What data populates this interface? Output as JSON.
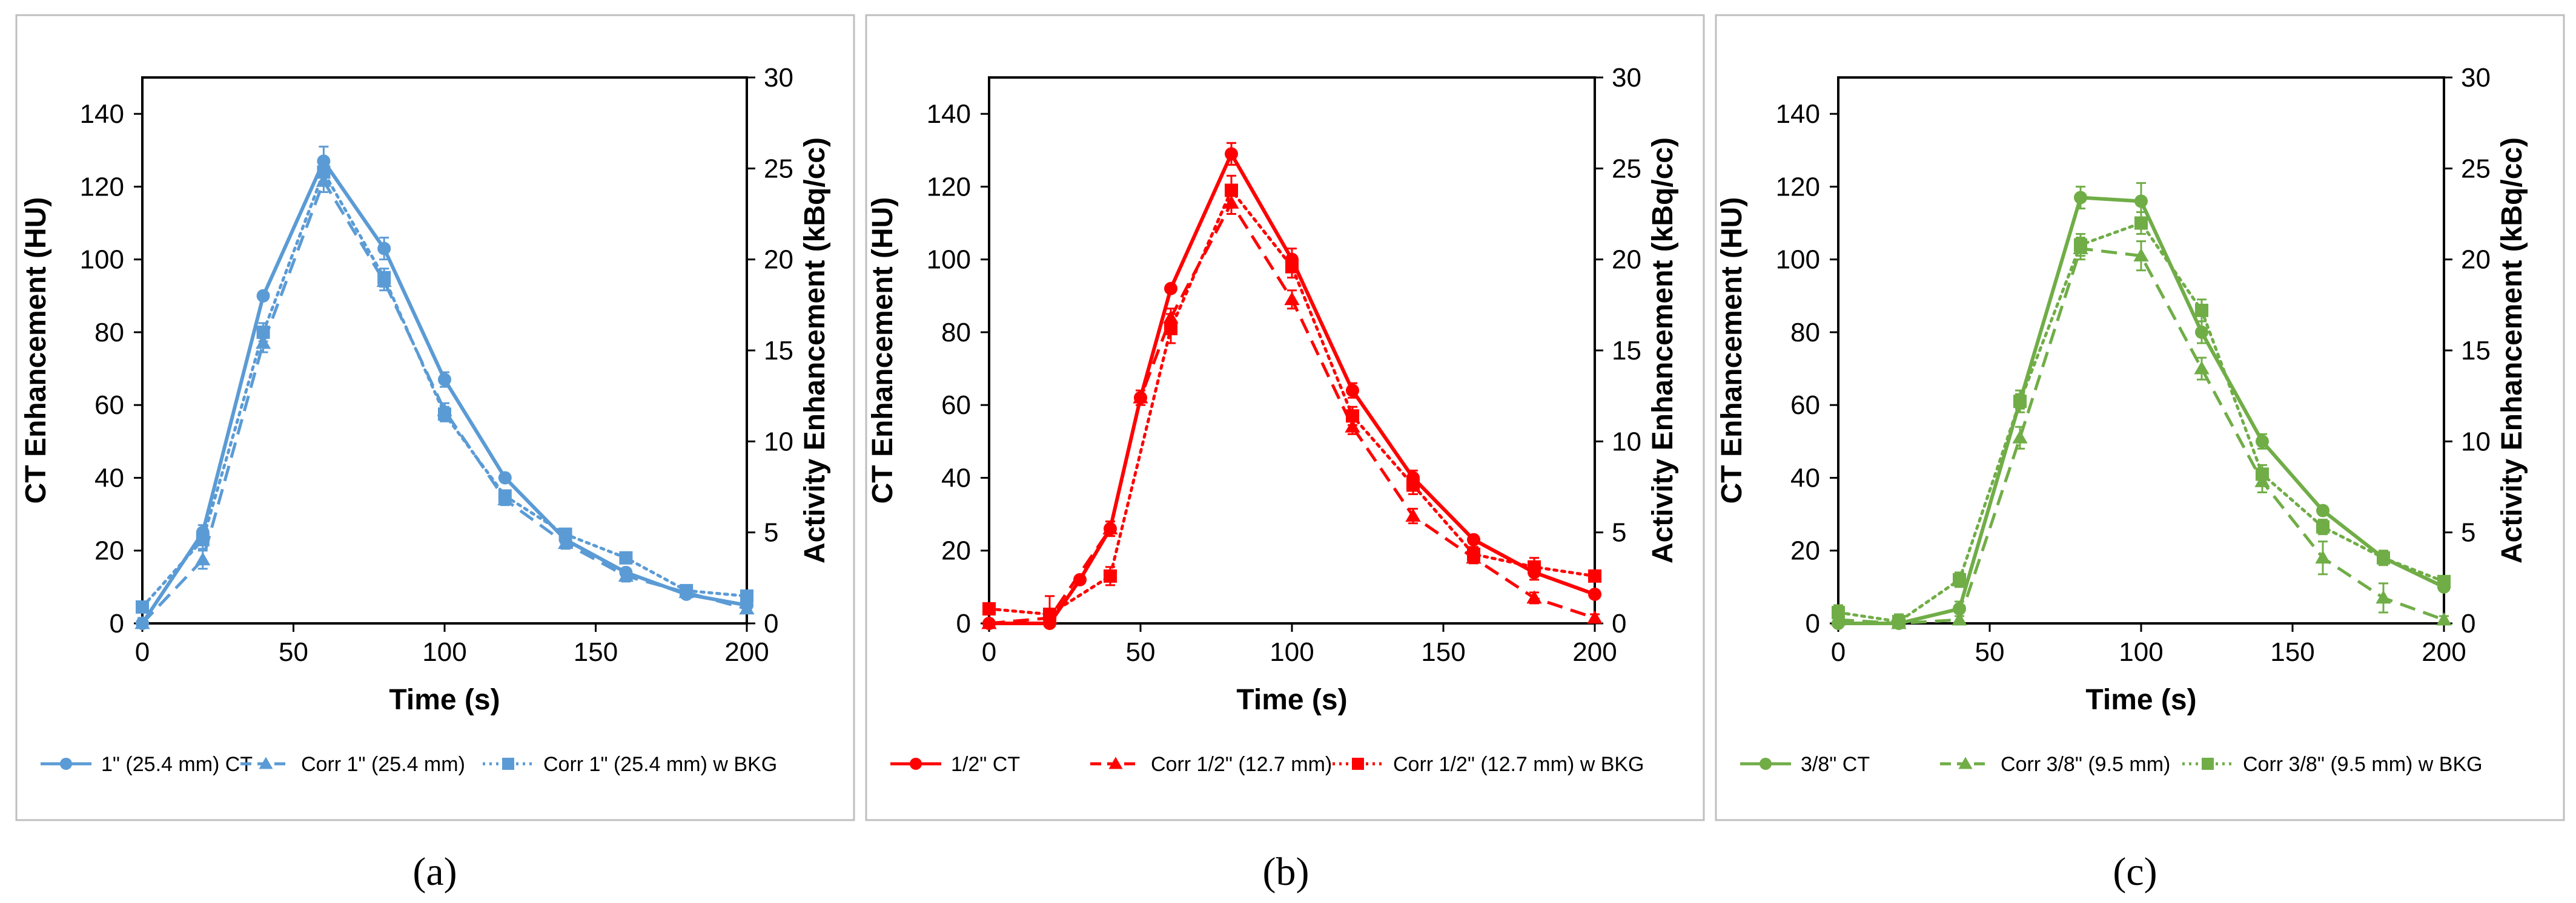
{
  "chart_data": [
    {
      "type": "line",
      "panel_label": "(a)",
      "title": "",
      "xlabel": "Time (s)",
      "ylabel": "CT Enhancement (HU)",
      "y2label": "Activity Enhancement (kBq/cc)",
      "xlim": [
        0,
        200
      ],
      "ylim": [
        0,
        150
      ],
      "y2lim": [
        0,
        30
      ],
      "xticks": [
        "0",
        "50",
        "100",
        "150",
        "200"
      ],
      "yticks": [
        "0",
        "20",
        "40",
        "60",
        "80",
        "100",
        "120",
        "140"
      ],
      "y2ticks": [
        "0",
        "5",
        "10",
        "15",
        "20",
        "25",
        "30"
      ],
      "grid": false,
      "legend_position": "bottom",
      "color": "#5B9BD5",
      "series": [
        {
          "name": "1\" (25.4 mm) CT",
          "axis": "left",
          "style": "solid",
          "marker": "circle",
          "x": [
            0,
            20,
            40,
            60,
            80,
            100,
            120,
            140,
            160,
            180,
            200
          ],
          "y": [
            0,
            25,
            90,
            127,
            103,
            67,
            40,
            23,
            14,
            8,
            5
          ],
          "err": [
            1,
            2,
            1,
            4,
            3,
            2,
            1,
            1,
            1,
            1,
            1
          ]
        },
        {
          "name": "Corr 1\" (25.4 mm)",
          "axis": "right",
          "style": "dash",
          "marker": "triangle",
          "x": [
            0,
            20,
            40,
            60,
            80,
            100,
            120,
            140,
            160,
            180,
            200
          ],
          "y": [
            0,
            3.5,
            15.4,
            24.3,
            18.8,
            11.7,
            6.8,
            4.4,
            2.6,
            1.7,
            0.8
          ],
          "err": [
            0.3,
            0.5,
            0.5,
            0.6,
            0.5,
            0.4,
            0.3,
            0.3,
            0.3,
            0.2,
            0.2
          ]
        },
        {
          "name": "Corr 1\" (25.4 mm) w BKG",
          "axis": "right",
          "style": "dot",
          "marker": "square",
          "x": [
            0,
            20,
            40,
            60,
            80,
            100,
            120,
            140,
            160,
            180,
            200
          ],
          "y": [
            0.9,
            4.6,
            16.0,
            24.8,
            19.0,
            11.5,
            7.0,
            4.9,
            3.6,
            1.8,
            1.5
          ],
          "err": [
            0.3,
            0.5,
            0.5,
            0.6,
            0.5,
            0.4,
            0.3,
            0.3,
            0.3,
            0.2,
            0.2
          ]
        }
      ]
    },
    {
      "type": "line",
      "panel_label": "(b)",
      "title": "",
      "xlabel": "Time (s)",
      "ylabel": "CT Enhancement (HU)",
      "y2label": "Activity Enhancement (kBq/cc)",
      "xlim": [
        0,
        200
      ],
      "ylim": [
        0,
        150
      ],
      "y2lim": [
        0,
        30
      ],
      "xticks": [
        "0",
        "50",
        "100",
        "150",
        "200"
      ],
      "yticks": [
        "0",
        "20",
        "40",
        "60",
        "80",
        "100",
        "120",
        "140"
      ],
      "y2ticks": [
        "0",
        "5",
        "10",
        "15",
        "20",
        "25",
        "30"
      ],
      "grid": false,
      "legend_position": "bottom",
      "color": "#FF0000",
      "series": [
        {
          "name": "1/2\" CT",
          "axis": "left",
          "style": "solid",
          "marker": "circle",
          "x": [
            0,
            20,
            30,
            40,
            50,
            60,
            80,
            100,
            120,
            140,
            160,
            180,
            200
          ],
          "y": [
            0,
            0,
            12,
            26,
            62,
            92,
            129,
            100,
            64,
            40,
            23,
            14,
            8
          ],
          "err": [
            1,
            1,
            1,
            2,
            1,
            1,
            3,
            3,
            2,
            2,
            1,
            2,
            1
          ]
        },
        {
          "name": "Corr 1/2\" (12.7 mm)",
          "axis": "right",
          "style": "dash",
          "marker": "triangle",
          "x": [
            0,
            20,
            40,
            50,
            60,
            80,
            100,
            120,
            140,
            160,
            180,
            200
          ],
          "y": [
            0,
            0.3,
            5.2,
            12.4,
            16.8,
            23.1,
            17.8,
            10.8,
            5.9,
            3.6,
            1.4,
            0.3
          ],
          "err": [
            0.2,
            0.3,
            0.4,
            0.4,
            0.5,
            0.6,
            0.5,
            0.4,
            0.4,
            0.3,
            0.3,
            0.2
          ]
        },
        {
          "name": "Corr 1/2\" (12.7 mm) w BKG",
          "axis": "right",
          "style": "dot",
          "marker": "square",
          "x": [
            0,
            20,
            40,
            60,
            80,
            100,
            120,
            140,
            160,
            180,
            200
          ],
          "y": [
            0.8,
            0.5,
            2.6,
            16.2,
            23.8,
            19.6,
            11.4,
            7.6,
            3.8,
            3.1,
            2.6
          ],
          "err": [
            0.2,
            1.0,
            0.5,
            0.8,
            0.8,
            0.6,
            0.5,
            0.5,
            0.4,
            0.5,
            0.3
          ]
        }
      ]
    },
    {
      "type": "line",
      "panel_label": "(c)",
      "title": "",
      "xlabel": "Time (s)",
      "ylabel": "CT Enhancement (HU)",
      "y2label": "Activity Enhancement (kBq/cc)",
      "xlim": [
        0,
        200
      ],
      "ylim": [
        0,
        150
      ],
      "y2lim": [
        0,
        30
      ],
      "xticks": [
        "0",
        "50",
        "100",
        "150",
        "200"
      ],
      "yticks": [
        "0",
        "20",
        "40",
        "60",
        "80",
        "100",
        "120",
        "140"
      ],
      "y2ticks": [
        "0",
        "5",
        "10",
        "15",
        "20",
        "25",
        "30"
      ],
      "grid": false,
      "legend_position": "bottom",
      "color": "#70AD47",
      "series": [
        {
          "name": "3/8\" CT",
          "axis": "left",
          "style": "solid",
          "marker": "circle",
          "x": [
            0,
            20,
            40,
            60,
            80,
            100,
            120,
            140,
            160,
            180,
            200
          ],
          "y": [
            0,
            0,
            4,
            61,
            117,
            116,
            80,
            50,
            31,
            18,
            10
          ],
          "err": [
            4,
            2,
            2,
            2,
            3,
            5,
            3,
            2,
            1,
            1,
            1
          ]
        },
        {
          "name": "Corr 3/8\" (9.5 mm)",
          "axis": "right",
          "style": "dash",
          "marker": "triangle",
          "x": [
            0,
            20,
            40,
            60,
            80,
            100,
            120,
            140,
            160,
            180,
            200
          ],
          "y": [
            0.2,
            0,
            0.2,
            10.2,
            20.6,
            20.2,
            14.0,
            7.8,
            3.6,
            1.4,
            0.2
          ],
          "err": [
            0.4,
            0.3,
            0.4,
            0.6,
            0.6,
            0.8,
            0.6,
            0.6,
            0.9,
            0.8,
            0.2
          ]
        },
        {
          "name": "Corr 3/8\" (9.5 mm) w BKG",
          "axis": "right",
          "style": "dot",
          "marker": "square",
          "x": [
            0,
            20,
            40,
            60,
            80,
            100,
            120,
            140,
            160,
            180,
            200
          ],
          "y": [
            0.6,
            0.1,
            2.4,
            12.2,
            20.8,
            22.0,
            17.2,
            8.2,
            5.3,
            3.6,
            2.3
          ],
          "err": [
            0.4,
            0.4,
            0.4,
            0.6,
            0.6,
            0.6,
            0.6,
            0.5,
            0.4,
            0.4,
            0.3
          ]
        }
      ]
    }
  ]
}
